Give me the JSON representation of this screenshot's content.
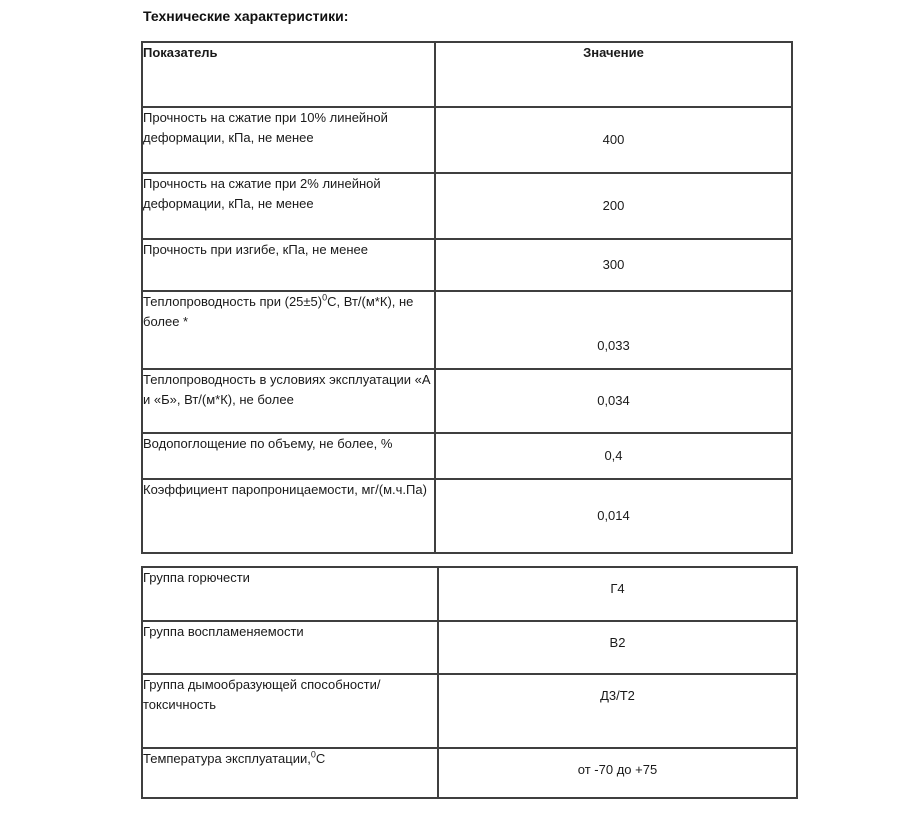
{
  "page": {
    "title": "Технические характеристики:"
  },
  "table1": {
    "headers": {
      "indicator": "Показатель",
      "value": "Значение"
    },
    "rows": [
      {
        "label": "Прочность на сжатие при 10% линейной деформации, кПа, не менее",
        "value": "400"
      },
      {
        "label": "Прочность на сжатие при 2% линейной деформации, кПа, не менее",
        "value": "200"
      },
      {
        "label": "Прочность при изгибе, кПа, не менее",
        "value": "300"
      },
      {
        "label_pre": "Теплопроводность при (25±5)",
        "label_sup": "0",
        "label_post": "С, Вт/(м*К), не более *",
        "value": "0,033"
      },
      {
        "label": "Теплопроводность в условиях эксплуатации «А и «Б», Вт/(м*К), не более",
        "value": "0,034"
      },
      {
        "label": "Водопоглощение по объему, не более, %",
        "value": "0,4"
      },
      {
        "label": "Коэффициент паропроницаемости, мг/(м.ч.Па)",
        "value": "0,014"
      }
    ]
  },
  "table2": {
    "rows": [
      {
        "label": "Группа горючести",
        "value": "Г4"
      },
      {
        "label": "Группа воспламеняемости",
        "value": "В2"
      },
      {
        "label": "Группа дымообразующей способности/токсичность",
        "value": "Д3/Т2"
      },
      {
        "label_pre": "Температура эксплуатации,",
        "label_sup": "0",
        "label_post": "С",
        "value": "от -70 до +75"
      }
    ]
  }
}
